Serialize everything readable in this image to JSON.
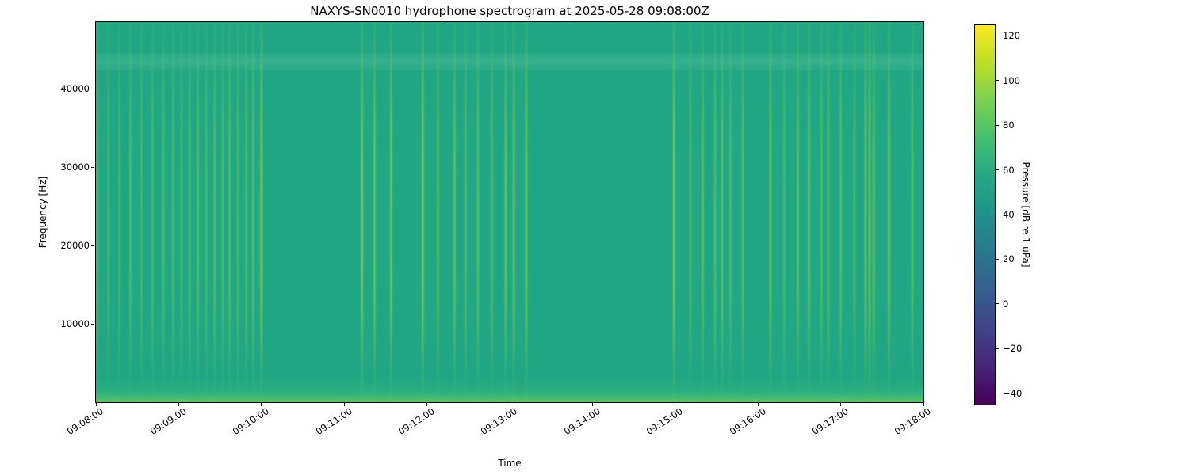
{
  "chart_data": {
    "type": "heatmap",
    "variant": "spectrogram",
    "title": "NAXYS-SN0010 hydrophone spectrogram at 2025-05-28 09:08:00Z",
    "xlabel": "Time",
    "ylabel": "Frequency [Hz]",
    "x_range_seconds": [
      0,
      600
    ],
    "x_ticks": [
      {
        "t": 0,
        "label": "09:08:00"
      },
      {
        "t": 60,
        "label": "09:09:00"
      },
      {
        "t": 120,
        "label": "09:10:00"
      },
      {
        "t": 180,
        "label": "09:11:00"
      },
      {
        "t": 240,
        "label": "09:12:00"
      },
      {
        "t": 300,
        "label": "09:13:00"
      },
      {
        "t": 360,
        "label": "09:14:00"
      },
      {
        "t": 420,
        "label": "09:15:00"
      },
      {
        "t": 480,
        "label": "09:16:00"
      },
      {
        "t": 540,
        "label": "09:17:00"
      },
      {
        "t": 600,
        "label": "09:18:00"
      }
    ],
    "y_range_hz": [
      0,
      48500
    ],
    "y_ticks": [
      {
        "value": 10000,
        "label": "10000"
      },
      {
        "value": 20000,
        "label": "20000"
      },
      {
        "value": 30000,
        "label": "30000"
      },
      {
        "value": 40000,
        "label": "40000"
      }
    ],
    "colorbar": {
      "label": "Pressure [dB re 1 uPa]",
      "range": [
        -45,
        125
      ],
      "ticks": [
        {
          "value": 120,
          "label": "120"
        },
        {
          "value": 100,
          "label": "100"
        },
        {
          "value": 80,
          "label": "80"
        },
        {
          "value": 60,
          "label": "60"
        },
        {
          "value": 40,
          "label": "40"
        },
        {
          "value": 20,
          "label": "20"
        },
        {
          "value": 0,
          "label": "0"
        },
        {
          "value": -20,
          "label": "−20"
        },
        {
          "value": -40,
          "label": "−40"
        }
      ],
      "colormap": "viridis",
      "viridis_stops": [
        "#440154",
        "#482475",
        "#414487",
        "#355f8d",
        "#2a788e",
        "#21918c",
        "#22a884",
        "#44bf70",
        "#7ad151",
        "#bddf26",
        "#fde725"
      ]
    },
    "background_color": "#1f9e8a",
    "background_level_db": 56,
    "low_freq_band": {
      "max_hz": 2500,
      "level_db": 72
    },
    "high_freq_band": {
      "center_hz": 43500,
      "level_db": 60
    },
    "transient_profile": [
      [
        0,
        0.18
      ],
      [
        0.06,
        0.25
      ],
      [
        0.15,
        0.45
      ],
      [
        0.28,
        0.8
      ],
      [
        0.38,
        0.95
      ],
      [
        0.5,
        1.0
      ],
      [
        0.62,
        1.0
      ],
      [
        0.7,
        0.92
      ],
      [
        0.78,
        0.7
      ],
      [
        0.85,
        0.45
      ],
      [
        0.92,
        0.2
      ],
      [
        0.97,
        0.08
      ],
      [
        1,
        0.04
      ]
    ],
    "transients": [
      {
        "t": 1,
        "i": 0.6
      },
      {
        "t": 9,
        "i": 0.5
      },
      {
        "t": 17,
        "i": 0.55
      },
      {
        "t": 25,
        "i": 0.6
      },
      {
        "t": 33,
        "i": 0.55
      },
      {
        "t": 41,
        "i": 0.6
      },
      {
        "t": 49,
        "i": 0.55
      },
      {
        "t": 56,
        "i": 0.6
      },
      {
        "t": 62,
        "i": 0.55
      },
      {
        "t": 68,
        "i": 0.6
      },
      {
        "t": 74,
        "i": 0.65
      },
      {
        "t": 80,
        "i": 0.6
      },
      {
        "t": 86,
        "i": 0.65
      },
      {
        "t": 92,
        "i": 0.6
      },
      {
        "t": 97,
        "i": 0.65
      },
      {
        "t": 103,
        "i": 0.6
      },
      {
        "t": 109,
        "i": 0.65
      },
      {
        "t": 114,
        "i": 0.7
      },
      {
        "t": 120,
        "i": 0.95
      },
      {
        "t": 193,
        "i": 0.85
      },
      {
        "t": 202,
        "i": 0.8
      },
      {
        "t": 214,
        "i": 0.85
      },
      {
        "t": 237,
        "i": 0.95
      },
      {
        "t": 248,
        "i": 0.7
      },
      {
        "t": 260,
        "i": 0.75
      },
      {
        "t": 268,
        "i": 0.7
      },
      {
        "t": 277,
        "i": 0.7
      },
      {
        "t": 287,
        "i": 0.65
      },
      {
        "t": 297,
        "i": 0.75
      },
      {
        "t": 303,
        "i": 0.85
      },
      {
        "t": 312,
        "i": 0.9
      },
      {
        "t": 419,
        "i": 0.9
      },
      {
        "t": 431,
        "i": 0.6
      },
      {
        "t": 440,
        "i": 0.7
      },
      {
        "t": 449,
        "i": 0.65
      },
      {
        "t": 454,
        "i": 0.75
      },
      {
        "t": 460,
        "i": 0.6
      },
      {
        "t": 469,
        "i": 0.7
      },
      {
        "t": 489,
        "i": 0.8
      },
      {
        "t": 499,
        "i": 0.6
      },
      {
        "t": 509,
        "i": 0.7
      },
      {
        "t": 517,
        "i": 0.85
      },
      {
        "t": 526,
        "i": 0.6
      },
      {
        "t": 531,
        "i": 0.65
      },
      {
        "t": 540,
        "i": 0.7
      },
      {
        "t": 550,
        "i": 0.6
      },
      {
        "t": 558,
        "i": 0.8
      },
      {
        "t": 561,
        "i": 0.85
      },
      {
        "t": 564,
        "i": 0.8
      },
      {
        "t": 575,
        "i": 0.9
      },
      {
        "t": 592,
        "i": 0.7
      }
    ]
  }
}
